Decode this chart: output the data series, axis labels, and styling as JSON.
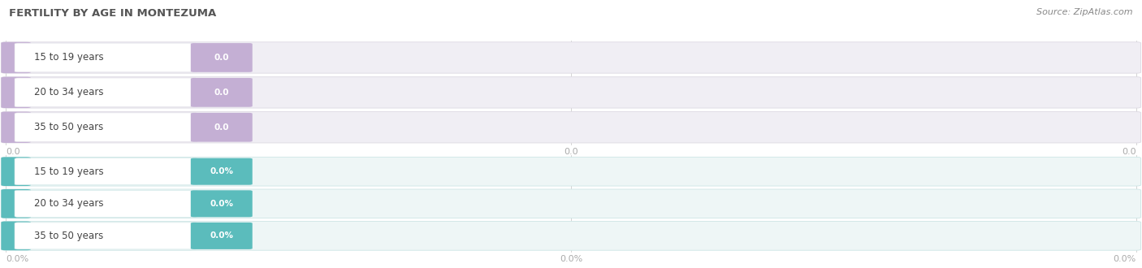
{
  "title": "FERTILITY BY AGE IN MONTEZUMA",
  "source": "Source: ZipAtlas.com",
  "categories": [
    "15 to 19 years",
    "20 to 34 years",
    "35 to 50 years"
  ],
  "values_abs": [
    0.0,
    0.0,
    0.0
  ],
  "values_pct": [
    0.0,
    0.0,
    0.0
  ],
  "bar_color_abs": "#c4afd4",
  "bar_color_pct": "#5bbcbc",
  "bar_bg_color": "#f0eef4",
  "bar_border_color": "#ddd9e3",
  "bar_bg_color_pct": "#eef6f6",
  "bar_border_color_pct": "#cce5e5",
  "title_color": "#555555",
  "source_color": "#888888",
  "tick_color": "#aaaaaa",
  "fig_width": 14.06,
  "fig_height": 3.3,
  "background_color": "#ffffff",
  "tick_labels_abs": [
    "0.0",
    "0.0",
    "0.0"
  ],
  "tick_labels_pct": [
    "0.0%",
    "0.0%",
    "0.0%"
  ]
}
